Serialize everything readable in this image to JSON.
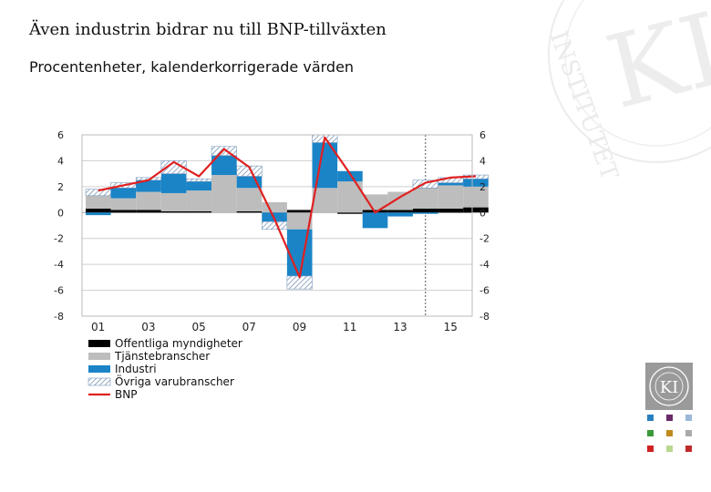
{
  "header": {
    "title": "Även industrin bidrar nu till BNP-tillväxten",
    "subtitle": "Procentenheter, kalenderkorrigerade värden"
  },
  "watermark": {
    "text": "KONJUNKTURINSTITUTET",
    "monogram": "KI"
  },
  "logo": {
    "monogram": "KI"
  },
  "colors": {
    "offentliga": "#000000",
    "tjanste": "#bdbdbd",
    "industri": "#1a84c7",
    "ovriga_hatch": "#5a7fa8",
    "bnp": "#e02020",
    "grid": "#cfcfcf",
    "forecast_line": "#555555"
  },
  "swatch_colors": [
    "#2a7fc0",
    "#6a2a6a",
    "#9ab8d8",
    "#3a9a3a",
    "#c08a20",
    "#aaaaaa",
    "#d02020",
    "#b8d890",
    "#c02a2a"
  ],
  "chart_data": {
    "type": "bar",
    "stacked": true,
    "title": "Även industrin bidrar nu till BNP-tillväxten",
    "subtitle": "Procentenheter, kalenderkorrigerade värden",
    "years": [
      2001,
      2002,
      2003,
      2004,
      2005,
      2006,
      2007,
      2008,
      2009,
      2010,
      2011,
      2012,
      2013,
      2014,
      2015,
      2016
    ],
    "tick_labels": [
      "01",
      "03",
      "05",
      "07",
      "09",
      "11",
      "13",
      "15"
    ],
    "tick_years": [
      2001,
      2003,
      2005,
      2007,
      2009,
      2011,
      2013,
      2015
    ],
    "ylim": [
      -8,
      6
    ],
    "yticks": [
      6,
      4,
      2,
      0,
      -2,
      -4,
      -6,
      -8
    ],
    "forecast_from": 2014.5,
    "series": [
      {
        "name": "Offentliga myndigheter",
        "key": "offentliga",
        "values": [
          0.3,
          0.2,
          0.2,
          0.1,
          0.1,
          0.0,
          0.1,
          0.0,
          0.2,
          0.0,
          -0.1,
          0.2,
          0.2,
          0.3,
          0.3,
          0.4
        ]
      },
      {
        "name": "Tjänstebranscher",
        "key": "tjanste",
        "values": [
          1.0,
          0.9,
          1.4,
          1.4,
          1.6,
          2.9,
          1.8,
          0.8,
          -1.3,
          1.9,
          2.4,
          1.2,
          1.4,
          1.6,
          1.8,
          1.6
        ]
      },
      {
        "name": "Industri",
        "key": "industri",
        "values": [
          -0.2,
          0.8,
          0.9,
          1.5,
          0.7,
          1.5,
          0.9,
          -0.7,
          -3.6,
          3.5,
          0.8,
          -1.2,
          -0.3,
          -0.1,
          0.2,
          0.6
        ]
      },
      {
        "name": "Övriga varubranscher",
        "key": "ovriga",
        "values": [
          0.5,
          0.4,
          0.2,
          1.0,
          0.2,
          0.7,
          0.8,
          -0.6,
          -1.0,
          0.6,
          0.0,
          0.0,
          0.0,
          0.6,
          0.4,
          0.3
        ]
      }
    ],
    "line": {
      "name": "BNP",
      "key": "bnp",
      "values": [
        1.7,
        2.1,
        2.5,
        3.9,
        2.8,
        4.9,
        3.5,
        -0.5,
        -5.0,
        5.8,
        3.0,
        0.0,
        1.2,
        2.3,
        2.7,
        2.8
      ]
    }
  }
}
